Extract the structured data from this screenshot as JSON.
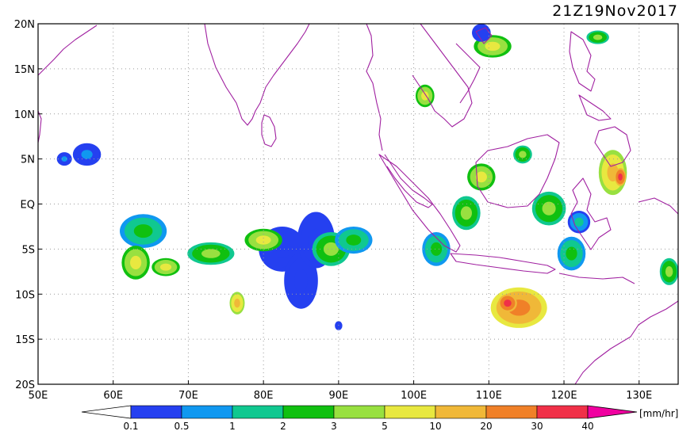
{
  "title": "21Z19Nov2017",
  "unit_label": "[mm/hr]",
  "lat_labels": [
    "20N",
    "15N",
    "10N",
    "5N",
    "EQ",
    "5S",
    "10S",
    "15S",
    "20S"
  ],
  "lon_labels": [
    "50E",
    "60E",
    "70E",
    "80E",
    "90E",
    "100E",
    "110E",
    "120E",
    "130E"
  ],
  "colorbar": {
    "levels": [
      "0.1",
      "0.5",
      "1",
      "2",
      "3",
      "5",
      "10",
      "20",
      "30",
      "40"
    ],
    "colors": [
      "#2540f0",
      "#1098f0",
      "#10c890",
      "#10c010",
      "#98e040",
      "#e8e840",
      "#f0b838",
      "#f08028",
      "#f03048",
      "#f000a0"
    ],
    "low_color": "#ffffff"
  },
  "coast_color": "#a020a0",
  "rain_cells": [
    {
      "lon": 56.5,
      "lat": 5.5,
      "rx": 1.5,
      "ry": 1.0,
      "level": 1
    },
    {
      "lon": 64.0,
      "lat": -3.0,
      "rx": 2.5,
      "ry": 1.5,
      "level": 3
    },
    {
      "lon": 63.0,
      "lat": -6.5,
      "rx": 1.5,
      "ry": 1.5,
      "level": 5
    },
    {
      "lon": 67.0,
      "lat": -7.0,
      "rx": 1.5,
      "ry": 0.8,
      "level": 5
    },
    {
      "lon": 73.0,
      "lat": -5.5,
      "rx": 2.5,
      "ry": 1.0,
      "level": 4
    },
    {
      "lon": 82.5,
      "lat": -5.0,
      "rx": 2.5,
      "ry": 2.0,
      "level": 0
    },
    {
      "lon": 80.0,
      "lat": -4.0,
      "rx": 2.0,
      "ry": 1.0,
      "level": 5
    },
    {
      "lon": 85.0,
      "lat": -8.5,
      "rx": 1.8,
      "ry": 2.5,
      "level": 0
    },
    {
      "lon": 87.0,
      "lat": -4.0,
      "rx": 2.0,
      "ry": 2.5,
      "level": 0
    },
    {
      "lon": 89.0,
      "lat": -5.0,
      "rx": 2.0,
      "ry": 1.5,
      "level": 4
    },
    {
      "lon": 92.0,
      "lat": -4.0,
      "rx": 2.0,
      "ry": 1.2,
      "level": 3
    },
    {
      "lon": 76.5,
      "lat": -11.0,
      "rx": 0.8,
      "ry": 1.0,
      "level": 6
    },
    {
      "lon": 103.0,
      "lat": -5.0,
      "rx": 1.5,
      "ry": 1.5,
      "level": 3
    },
    {
      "lon": 107.0,
      "lat": -1.0,
      "rx": 1.5,
      "ry": 1.5,
      "level": 4
    },
    {
      "lon": 114.0,
      "lat": -11.5,
      "rx": 3.0,
      "ry": 1.8,
      "level": 7
    },
    {
      "lon": 112.5,
      "lat": -11.0,
      "rx": 1.0,
      "ry": 0.8,
      "level": 8
    },
    {
      "lon": 109.0,
      "lat": 3.0,
      "rx": 1.5,
      "ry": 1.2,
      "level": 5
    },
    {
      "lon": 118.0,
      "lat": -0.5,
      "rx": 1.8,
      "ry": 1.5,
      "level": 4
    },
    {
      "lon": 126.5,
      "lat": 3.5,
      "rx": 1.5,
      "ry": 2.0,
      "level": 6
    },
    {
      "lon": 127.5,
      "lat": 3.0,
      "rx": 0.6,
      "ry": 0.8,
      "level": 8
    },
    {
      "lon": 121.0,
      "lat": -5.5,
      "rx": 1.5,
      "ry": 1.5,
      "level": 3
    },
    {
      "lon": 122.0,
      "lat": -2.0,
      "rx": 1.2,
      "ry": 1.0,
      "level": 2
    },
    {
      "lon": 134.0,
      "lat": -7.5,
      "rx": 1.0,
      "ry": 1.2,
      "level": 4
    },
    {
      "lon": 110.5,
      "lat": 17.5,
      "rx": 2.0,
      "ry": 1.0,
      "level": 5
    },
    {
      "lon": 109.0,
      "lat": 19.0,
      "rx": 1.0,
      "ry": 0.8,
      "level": 0
    },
    {
      "lon": 124.5,
      "lat": 18.5,
      "rx": 1.2,
      "ry": 0.6,
      "level": 4
    },
    {
      "lon": 101.5,
      "lat": 12.0,
      "rx": 1.0,
      "ry": 1.0,
      "level": 5
    },
    {
      "lon": 114.5,
      "lat": 5.5,
      "rx": 1.0,
      "ry": 0.8,
      "level": 4
    },
    {
      "lon": 90.0,
      "lat": -13.5,
      "rx": 0.4,
      "ry": 0.4,
      "level": 0
    },
    {
      "lon": 53.5,
      "lat": 5.0,
      "rx": 0.8,
      "ry": 0.6,
      "level": 1
    }
  ]
}
